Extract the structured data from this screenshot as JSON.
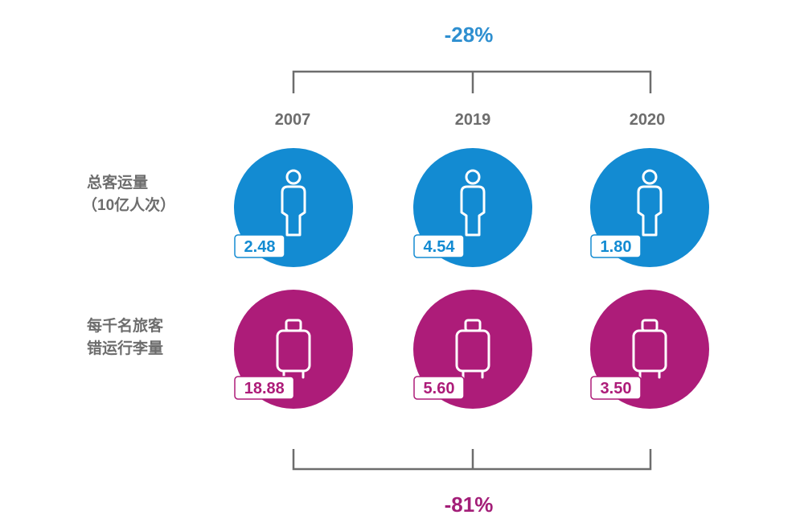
{
  "top_change": "-28%",
  "bottom_change": "-81%",
  "years": [
    "2007",
    "2019",
    "2020"
  ],
  "row_labels": {
    "passengers": {
      "line1": "总客运量",
      "line2": "（10亿人次）"
    },
    "bags": {
      "line1": "每千名旅客",
      "line2": "错运行李量"
    }
  },
  "colors": {
    "blue": "#138bd2",
    "magenta": "#ad1c79",
    "bracket": "#6d6d6d"
  },
  "icons": {
    "passengers": "person-icon",
    "bags": "suitcase-icon"
  },
  "chart_data": {
    "type": "table",
    "columns": [
      "2007",
      "2019",
      "2020"
    ],
    "rows": [
      {
        "name": "总客运量（10亿人次）",
        "values": [
          "2.48",
          "4.54",
          "1.80"
        ]
      },
      {
        "name": "每千名旅客错运行李量",
        "values": [
          "18.88",
          "5.60",
          "3.50"
        ]
      }
    ],
    "annotations": {
      "top": "-28%",
      "bottom": "-81%"
    }
  }
}
